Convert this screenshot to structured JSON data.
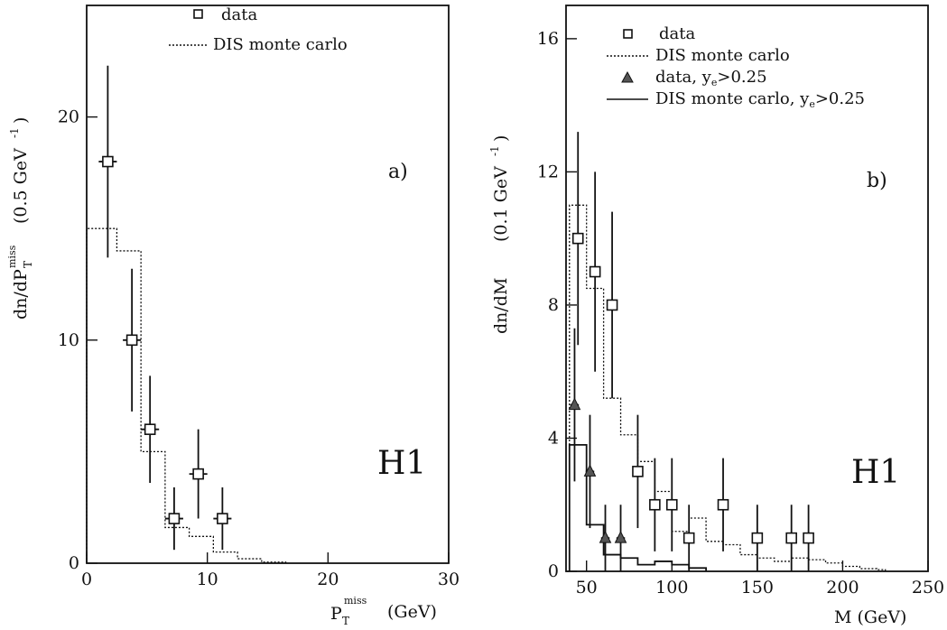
{
  "chart_data": [
    {
      "type": "scatter",
      "panel_label": "a)",
      "experiment_label": "H1",
      "xlabel": "P_T^miss",
      "xlabel_main": "P",
      "xlabel_sub": "T",
      "xlabel_sup": "miss",
      "xunit": "(GeV)",
      "ylabel_main": "dn/dP",
      "ylabel_sub": "T",
      "ylabel_sup": "miss",
      "yunit_text": "(0.5 GeV",
      "yunit_sup": "-1",
      "yunit_close": ")",
      "xlim": [
        0,
        30
      ],
      "ylim": [
        0,
        25
      ],
      "xticks": [
        0,
        10,
        20,
        30
      ],
      "yticks": [
        0,
        10,
        20
      ],
      "legend": [
        "data",
        "DIS monte carlo"
      ],
      "series": [
        {
          "name": "data",
          "marker": "open-square",
          "points": [
            {
              "x": 1.75,
              "y": 18,
              "xerr": 0.75,
              "yerr_lo": 4.3,
              "yerr_hi": 4.3
            },
            {
              "x": 3.75,
              "y": 10,
              "xerr": 0.75,
              "yerr_lo": 3.2,
              "yerr_hi": 3.2
            },
            {
              "x": 5.25,
              "y": 6,
              "xerr": 0.75,
              "yerr_lo": 2.4,
              "yerr_hi": 2.4
            },
            {
              "x": 7.25,
              "y": 2,
              "xerr": 0.75,
              "yerr_lo": 1.4,
              "yerr_hi": 1.4
            },
            {
              "x": 9.25,
              "y": 4,
              "xerr": 0.75,
              "yerr_lo": 2.0,
              "yerr_hi": 2.0
            },
            {
              "x": 11.25,
              "y": 2,
              "xerr": 0.75,
              "yerr_lo": 1.4,
              "yerr_hi": 1.4
            }
          ]
        },
        {
          "name": "DIS monte carlo",
          "style": "dotted-step",
          "edges": [
            0,
            2.5,
            4.5,
            6.5,
            8.5,
            10.5,
            12.5,
            14.5,
            16.5
          ],
          "values": [
            15,
            14,
            5,
            1.6,
            1.2,
            0.5,
            0.2,
            0.05
          ]
        }
      ]
    },
    {
      "type": "scatter",
      "panel_label": "b)",
      "experiment_label": "H1",
      "xlabel": "M (GeV)",
      "ylabel": "dn/dM",
      "yunit_text": "(0.1 GeV",
      "yunit_sup": "-1",
      "yunit_close": ")",
      "xlim": [
        38,
        250
      ],
      "ylim": [
        0,
        17
      ],
      "xticks": [
        50,
        100,
        150,
        200,
        250
      ],
      "yticks": [
        0,
        4,
        8,
        12,
        16
      ],
      "legend": [
        "data",
        "DIS monte carlo",
        "data, y_e>0.25",
        "DIS monte carlo, y_e>0.25"
      ],
      "legend_text": {
        "l1": "data",
        "l2": "DIS monte carlo",
        "l3_main": "data, y",
        "l3_sub": "e",
        "l3_tail": ">0.25",
        "l4_main": "DIS monte carlo, y",
        "l4_sub": "e",
        "l4_tail": ">0.25"
      },
      "series": [
        {
          "name": "data",
          "marker": "open-square",
          "points": [
            {
              "x": 45,
              "y": 10,
              "xerr": 2.5,
              "yerr_lo": 3.2,
              "yerr_hi": 3.2
            },
            {
              "x": 55,
              "y": 9,
              "xerr": 2.5,
              "yerr_lo": 3.0,
              "yerr_hi": 3.0
            },
            {
              "x": 65,
              "y": 8,
              "xerr": 2.5,
              "yerr_lo": 2.8,
              "yerr_hi": 2.8
            },
            {
              "x": 80,
              "y": 3,
              "xerr": 2.5,
              "yerr_lo": 1.7,
              "yerr_hi": 1.7
            },
            {
              "x": 90,
              "y": 2,
              "xerr": 2.5,
              "yerr_lo": 1.4,
              "yerr_hi": 1.4
            },
            {
              "x": 100,
              "y": 2,
              "xerr": 2.5,
              "yerr_lo": 1.4,
              "yerr_hi": 1.4
            },
            {
              "x": 110,
              "y": 1,
              "xerr": 2.5,
              "yerr_lo": 1.0,
              "yerr_hi": 1.0
            },
            {
              "x": 130,
              "y": 2,
              "xerr": 2.5,
              "yerr_lo": 1.4,
              "yerr_hi": 1.4
            },
            {
              "x": 150,
              "y": 1,
              "xerr": 2.5,
              "yerr_lo": 1.0,
              "yerr_hi": 1.0
            },
            {
              "x": 170,
              "y": 1,
              "xerr": 2.5,
              "yerr_lo": 1.0,
              "yerr_hi": 1.0
            },
            {
              "x": 180,
              "y": 1,
              "xerr": 2.5,
              "yerr_lo": 1.0,
              "yerr_hi": 1.0
            }
          ]
        },
        {
          "name": "DIS monte carlo",
          "style": "dotted-step",
          "edges": [
            40,
            50,
            60,
            70,
            80,
            90,
            100,
            110,
            120,
            130,
            140,
            150,
            160,
            170,
            180,
            190,
            200,
            210,
            220,
            225
          ],
          "values": [
            11,
            8.5,
            5.2,
            4.1,
            3.3,
            2.4,
            1.2,
            1.6,
            0.9,
            0.8,
            0.5,
            0.4,
            0.3,
            0.4,
            0.35,
            0.25,
            0.15,
            0.08,
            0.05
          ]
        },
        {
          "name": "data, y_e>0.25",
          "marker": "filled-triangle",
          "points": [
            {
              "x": 43,
              "y": 5,
              "xerr": 2.5,
              "yerr_lo": 2.3,
              "yerr_hi": 2.3
            },
            {
              "x": 52,
              "y": 3,
              "xerr": 2.5,
              "yerr_lo": 1.7,
              "yerr_hi": 1.7
            },
            {
              "x": 61,
              "y": 1,
              "xerr": 2.5,
              "yerr_lo": 1.0,
              "yerr_hi": 1.0
            },
            {
              "x": 70,
              "y": 1,
              "xerr": 2.5,
              "yerr_lo": 1.0,
              "yerr_hi": 1.0
            }
          ]
        },
        {
          "name": "DIS monte carlo, y_e>0.25",
          "style": "solid-step",
          "edges": [
            40,
            50,
            60,
            70,
            80,
            90,
            100,
            110,
            120
          ],
          "values": [
            3.8,
            1.4,
            0.5,
            0.4,
            0.2,
            0.3,
            0.2,
            0.1
          ]
        }
      ]
    }
  ]
}
